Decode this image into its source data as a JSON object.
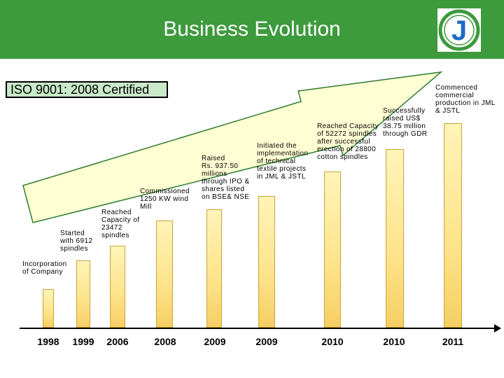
{
  "header": {
    "title": "Business Evolution"
  },
  "logo": {
    "letter": "J",
    "color_blue": "#1e6bc6",
    "color_green": "#3d9a3d"
  },
  "certification": {
    "text": "ISO 9001: 2008 Certified"
  },
  "timeline": {
    "milestones": [
      {
        "year": "1998",
        "label": "Incorporation\nof Company"
      },
      {
        "year": "1999",
        "label": "Started\nwith 6912\nspindles"
      },
      {
        "year": "2006",
        "label": "Reached\nCapacity of\n23472\nspindles"
      },
      {
        "year": "2008",
        "label": "Commissioned\n1250 KW wind\nMill"
      },
      {
        "year": "2009",
        "label": "Raised\nRs. 937.50\nmillions\nthrough IPO &\nshares listed\non BSE& NSE"
      },
      {
        "year": "2009",
        "label": "Initiated  the\nimplementation\nof technical\ntextile projects\nin JML & JSTL"
      },
      {
        "year": "2010",
        "label": " Reached Capacity\nof 52272 spindles\nafter successful\nerection of 28800\ncotton spindles"
      },
      {
        "year": "2010",
        "label": "Successfully\nraised  US$\n38.75 million\nthrough GDR"
      },
      {
        "year": "2011",
        "label": "Commenced\ncommercial\nproduction in JML\n& JSTL"
      }
    ]
  },
  "colors": {
    "header_bg": "#3d9a3d",
    "cert_bg": "#c9e9c9",
    "arrow_fill": "#ffffd4",
    "arrow_stroke": "#2e7d2e"
  }
}
